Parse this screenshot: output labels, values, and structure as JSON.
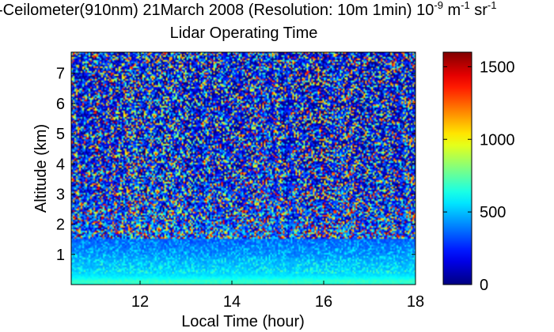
{
  "chart_data": {
    "type": "heatmap",
    "title": {
      "line1_main": "-Ceilometer(910nm) 21March 2008 (Resolution: 10m 1min) 10",
      "line1_exp1": "-9",
      "line1_mid": " m",
      "line1_exp2": "-1",
      "line1_tail": " sr",
      "line1_exp3": "-1",
      "line2": "Lidar Operating Time"
    },
    "xlabel": "Local Time (hour)",
    "ylabel": "Altitude (km)",
    "xlim": [
      10.5,
      18
    ],
    "ylim": [
      0,
      7.7
    ],
    "x_ticks": [
      12,
      14,
      16,
      18
    ],
    "x_tick_labels": [
      "12",
      "14",
      "16",
      "18"
    ],
    "y_ticks": [
      1,
      2,
      3,
      4,
      5,
      6,
      7
    ],
    "y_tick_labels": [
      "1",
      "2",
      "3",
      "4",
      "5",
      "6",
      "7"
    ],
    "colorbar": {
      "range": [
        0,
        1600
      ],
      "ticks": [
        0,
        500,
        1000,
        1500
      ],
      "tick_labels": [
        "0",
        "500",
        "1000",
        "1500"
      ],
      "colormap": "jet"
    },
    "grid": false,
    "profile_description": {
      "altitude_km": [
        0.0,
        0.1,
        0.2,
        0.3,
        0.5,
        0.8,
        1.0,
        1.5,
        2.0,
        3.0,
        4.0,
        5.0,
        6.0,
        7.0,
        7.7
      ],
      "typical_signal": [
        650,
        700,
        620,
        560,
        500,
        460,
        400,
        330,
        260,
        180,
        140,
        120,
        110,
        110,
        110
      ]
    }
  }
}
